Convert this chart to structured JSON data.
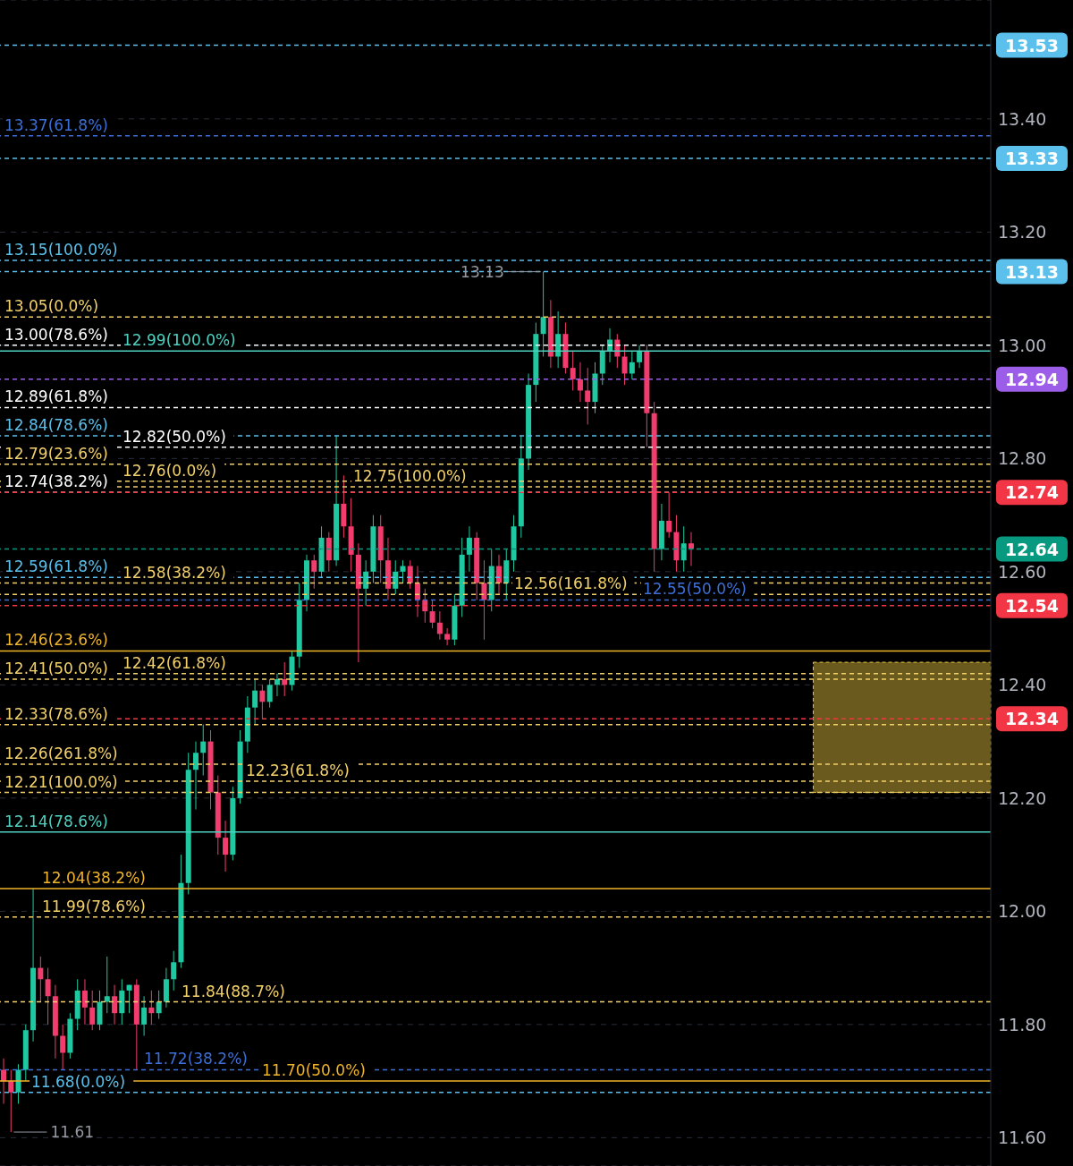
{
  "chart_data": {
    "type": "candlestick",
    "tick_labels": "y",
    "grid": "y",
    "ylim": [
      11.55,
      13.61
    ],
    "yticks": [
      {
        "value": 11.6,
        "label": "11.60"
      },
      {
        "value": 11.8,
        "label": "11.80"
      },
      {
        "value": 12.0,
        "label": "12.00"
      },
      {
        "value": 12.2,
        "label": "12.20"
      },
      {
        "value": 12.4,
        "label": "12.40"
      },
      {
        "value": 12.6,
        "label": "12.60"
      },
      {
        "value": 12.8,
        "label": "12.80"
      },
      {
        "value": 13.0,
        "label": "13.00"
      },
      {
        "value": 13.2,
        "label": "13.20"
      },
      {
        "value": 13.4,
        "label": "13.40"
      }
    ],
    "categories": [
      null,
      null,
      null,
      null,
      null,
      null,
      null,
      null,
      null,
      null,
      null,
      null,
      null,
      null,
      null,
      null,
      null,
      null,
      null,
      null,
      null,
      null,
      null,
      null,
      null,
      null,
      null,
      null,
      null,
      null,
      null,
      null,
      null,
      null,
      null,
      null,
      null,
      null,
      null,
      null,
      null,
      null,
      null,
      null,
      null,
      null,
      null,
      null,
      null,
      null,
      null,
      null,
      null,
      null,
      null,
      null,
      null,
      null,
      null,
      null,
      null,
      null,
      null,
      null,
      null,
      null,
      null,
      null,
      null,
      null,
      null,
      null,
      null,
      null,
      null,
      null,
      null,
      null,
      null,
      null,
      null,
      null,
      null,
      null,
      null,
      null,
      null,
      null,
      null,
      null,
      null,
      null,
      null,
      null,
      null,
      null,
      null,
      null,
      null,
      null,
      null,
      null,
      null,
      null,
      null,
      null,
      null,
      null,
      null,
      null,
      null,
      null,
      null,
      null,
      null,
      null,
      null,
      null,
      null,
      null,
      null,
      null,
      null,
      null,
      null,
      null,
      null,
      null,
      null,
      null,
      null,
      null,
      null,
      null
    ],
    "ohlc": [
      [
        11.72,
        11.74,
        11.66,
        11.7
      ],
      [
        11.7,
        11.72,
        11.61,
        11.68
      ],
      [
        11.68,
        11.73,
        11.66,
        11.72
      ],
      [
        11.72,
        11.8,
        11.7,
        11.79
      ],
      [
        11.79,
        12.04,
        11.77,
        11.9
      ],
      [
        11.9,
        11.92,
        11.84,
        11.88
      ],
      [
        11.88,
        11.9,
        11.8,
        11.85
      ],
      [
        11.85,
        11.87,
        11.74,
        11.78
      ],
      [
        11.78,
        11.8,
        11.72,
        11.75
      ],
      [
        11.75,
        11.82,
        11.74,
        11.81
      ],
      [
        11.81,
        11.88,
        11.79,
        11.86
      ],
      [
        11.86,
        11.88,
        11.8,
        11.83
      ],
      [
        11.83,
        11.86,
        11.79,
        11.8
      ],
      [
        11.8,
        11.86,
        11.79,
        11.84
      ],
      [
        11.84,
        11.92,
        11.82,
        11.85
      ],
      [
        11.85,
        11.87,
        11.8,
        11.82
      ],
      [
        11.82,
        11.88,
        11.8,
        11.86
      ],
      [
        11.86,
        11.87,
        11.82,
        11.87
      ],
      [
        11.87,
        11.88,
        11.72,
        11.8
      ],
      [
        11.8,
        11.85,
        11.78,
        11.83
      ],
      [
        11.83,
        11.86,
        11.8,
        11.82
      ],
      [
        11.82,
        11.86,
        11.81,
        11.84
      ],
      [
        11.84,
        11.9,
        11.83,
        11.88
      ],
      [
        11.88,
        11.93,
        11.86,
        11.91
      ],
      [
        11.91,
        12.1,
        11.9,
        12.05
      ],
      [
        12.05,
        12.28,
        12.03,
        12.25
      ],
      [
        12.25,
        12.3,
        12.18,
        12.28
      ],
      [
        12.28,
        12.33,
        12.24,
        12.3
      ],
      [
        12.3,
        12.32,
        12.18,
        12.21
      ],
      [
        12.21,
        12.24,
        12.1,
        12.13
      ],
      [
        12.13,
        12.16,
        12.07,
        12.1
      ],
      [
        12.1,
        12.22,
        12.09,
        12.2
      ],
      [
        12.2,
        12.32,
        12.19,
        12.3
      ],
      [
        12.3,
        12.38,
        12.28,
        12.36
      ],
      [
        12.36,
        12.41,
        12.33,
        12.39
      ],
      [
        12.39,
        12.4,
        12.34,
        12.37
      ],
      [
        12.37,
        12.41,
        12.36,
        12.4
      ],
      [
        12.4,
        12.42,
        12.38,
        12.41
      ],
      [
        12.41,
        12.44,
        12.38,
        12.4
      ],
      [
        12.4,
        12.46,
        12.39,
        12.45
      ],
      [
        12.45,
        12.58,
        12.43,
        12.55
      ],
      [
        12.55,
        12.63,
        12.53,
        12.62
      ],
      [
        12.62,
        12.63,
        12.57,
        12.6
      ],
      [
        12.6,
        12.68,
        12.59,
        12.66
      ],
      [
        12.66,
        12.67,
        12.6,
        12.62
      ],
      [
        12.62,
        12.84,
        12.61,
        12.72
      ],
      [
        12.72,
        12.77,
        12.66,
        12.68
      ],
      [
        12.68,
        12.73,
        12.6,
        12.63
      ],
      [
        12.63,
        12.65,
        12.44,
        12.57
      ],
      [
        12.57,
        12.62,
        12.54,
        12.6
      ],
      [
        12.6,
        12.7,
        12.58,
        12.68
      ],
      [
        12.68,
        12.7,
        12.58,
        12.62
      ],
      [
        12.62,
        12.66,
        12.55,
        12.57
      ],
      [
        12.57,
        12.62,
        12.56,
        12.6
      ],
      [
        12.6,
        12.62,
        12.58,
        12.61
      ],
      [
        12.61,
        12.62,
        12.57,
        12.58
      ],
      [
        12.58,
        12.61,
        12.52,
        12.55
      ],
      [
        12.55,
        12.57,
        12.51,
        12.53
      ],
      [
        12.53,
        12.55,
        12.5,
        12.51
      ],
      [
        12.51,
        12.53,
        12.48,
        12.49
      ],
      [
        12.49,
        12.5,
        12.47,
        12.48
      ],
      [
        12.48,
        12.56,
        12.47,
        12.54
      ],
      [
        12.54,
        12.66,
        12.52,
        12.63
      ],
      [
        12.63,
        12.68,
        12.6,
        12.66
      ],
      [
        12.66,
        12.67,
        12.55,
        12.58
      ],
      [
        12.58,
        12.62,
        12.48,
        12.55
      ],
      [
        12.55,
        12.64,
        12.53,
        12.61
      ],
      [
        12.61,
        12.63,
        12.56,
        12.58
      ],
      [
        12.58,
        12.64,
        12.55,
        12.62
      ],
      [
        12.62,
        12.7,
        12.6,
        12.68
      ],
      [
        12.68,
        12.84,
        12.66,
        12.8
      ],
      [
        12.8,
        12.95,
        12.78,
        12.93
      ],
      [
        12.93,
        13.04,
        12.9,
        13.02
      ],
      [
        13.02,
        13.13,
        12.98,
        13.05
      ],
      [
        13.05,
        13.08,
        12.96,
        12.98
      ],
      [
        12.98,
        13.06,
        12.96,
        13.02
      ],
      [
        13.02,
        13.04,
        12.95,
        12.96
      ],
      [
        12.96,
        12.99,
        12.92,
        12.94
      ],
      [
        12.94,
        12.97,
        12.9,
        12.92
      ],
      [
        12.92,
        12.96,
        12.86,
        12.9
      ],
      [
        12.9,
        12.97,
        12.88,
        12.95
      ],
      [
        12.95,
        13.0,
        12.93,
        12.99
      ],
      [
        12.99,
        13.03,
        12.97,
        13.01
      ],
      [
        13.01,
        13.02,
        12.96,
        12.98
      ],
      [
        12.98,
        13.0,
        12.93,
        12.95
      ],
      [
        12.95,
        12.99,
        12.94,
        12.97
      ],
      [
        12.97,
        13.0,
        12.96,
        12.99
      ],
      [
        12.99,
        13.0,
        12.82,
        12.88
      ],
      [
        12.88,
        12.9,
        12.6,
        12.64
      ],
      [
        12.64,
        12.72,
        12.62,
        12.69
      ],
      [
        12.69,
        12.74,
        12.66,
        12.67
      ],
      [
        12.67,
        12.7,
        12.6,
        12.62
      ],
      [
        12.62,
        12.68,
        12.6,
        12.65
      ],
      [
        12.65,
        12.67,
        12.61,
        12.64
      ],
      null,
      null,
      null,
      null,
      null,
      null,
      null,
      null,
      null,
      null,
      null,
      null,
      null,
      null,
      null,
      null,
      null,
      null,
      null,
      null,
      null,
      null,
      null,
      null,
      null,
      null,
      null,
      null,
      null,
      null,
      null,
      null,
      null,
      null,
      null,
      null,
      null,
      null,
      null,
      null
    ],
    "colors": [
      "#f23c6e",
      "#f23c6e",
      "#1fc8a0",
      "#1fc8a0",
      "#1fc8a0",
      "#f23c6e",
      "#f23c6e",
      "#f23c6e",
      "#f23c6e",
      "#1fc8a0",
      "#1fc8a0",
      "#f23c6e",
      "#f23c6e",
      "#1fc8a0",
      "#1fc8a0",
      "#f23c6e",
      "#1fc8a0",
      "#1fc8a0",
      "#f23c6e",
      "#1fc8a0",
      "#f23c6e",
      "#1fc8a0",
      "#1fc8a0",
      "#1fc8a0",
      "#1fc8a0",
      "#1fc8a0",
      "#1fc8a0",
      "#1fc8a0",
      "#f23c6e",
      "#f23c6e",
      "#f23c6e",
      "#1fc8a0",
      "#1fc8a0",
      "#1fc8a0",
      "#1fc8a0",
      "#f23c6e",
      "#1fc8a0",
      "#1fc8a0",
      "#f23c6e",
      "#1fc8a0",
      "#1fc8a0",
      "#1fc8a0",
      "#f23c6e",
      "#1fc8a0",
      "#f23c6e",
      "#1fc8a0",
      "#f23c6e",
      "#f23c6e",
      "#f23c6e",
      "#1fc8a0",
      "#1fc8a0",
      "#f23c6e",
      "#f23c6e",
      "#1fc8a0",
      "#1fc8a0",
      "#f23c6e",
      "#f23c6e",
      "#f23c6e",
      "#f23c6e",
      "#f23c6e",
      "#f23c6e",
      "#1fc8a0",
      "#1fc8a0",
      "#1fc8a0",
      "#f23c6e",
      "#f23c6e",
      "#1fc8a0",
      "#f23c6e",
      "#1fc8a0",
      "#1fc8a0",
      "#1fc8a0",
      "#1fc8a0",
      "#1fc8a0",
      "#1fc8a0",
      "#f23c6e",
      "#1fc8a0",
      "#f23c6e",
      "#f23c6e",
      "#f23c6e",
      "#f23c6e",
      "#1fc8a0",
      "#1fc8a0",
      "#1fc8a0",
      "#f23c6e",
      "#f23c6e",
      "#1fc8a0",
      "#1fc8a0",
      "#f23c6e",
      "#f23c6e",
      "#1fc8a0",
      "#f23c6e",
      "#f23c6e",
      "#1fc8a0",
      "#f23c6e",
      null,
      null,
      null,
      null,
      null,
      null,
      null,
      null,
      null,
      null,
      null,
      null,
      null,
      null,
      null,
      null,
      null,
      null,
      null,
      null,
      null,
      null,
      null,
      null,
      null,
      null,
      null,
      null,
      null,
      null,
      null,
      null,
      null,
      null,
      null,
      null,
      null,
      null,
      null,
      null
    ],
    "ref_lines": [
      {
        "axis": "y",
        "value": 13.53,
        "label": "13.53",
        "color": "#5bc0eb",
        "line_style": "dashed"
      },
      {
        "axis": "y",
        "value": 13.37,
        "label": "13.37(61.8%)",
        "color": "#3d6fd6",
        "line_style": "dashed"
      },
      {
        "axis": "y",
        "value": 13.33,
        "label": "13.33",
        "color": "#5bc0eb",
        "line_style": "dashed"
      },
      {
        "axis": "y",
        "value": 13.15,
        "label": "13.15(100.0%)",
        "color": "#5bc0eb",
        "line_style": "dashed"
      },
      {
        "axis": "y",
        "value": 13.13,
        "label": "13.13",
        "color": "#5bc0eb",
        "line_style": "dashed"
      },
      {
        "axis": "y",
        "value": 13.05,
        "label": "13.05(0.0%)",
        "color": "#f2d16b",
        "line_style": "dashed"
      },
      {
        "axis": "y",
        "value": 13.0,
        "label": "13.00(78.6%)",
        "color": "#ffffff",
        "line_style": "dashed"
      },
      {
        "axis": "y",
        "value": 12.99,
        "label": "12.99(100.0%)",
        "color": "#4fd1c0",
        "line_style": "solid"
      },
      {
        "axis": "y",
        "value": 12.94,
        "label": "12.94",
        "color": "#9c5de8",
        "line_style": "dashed"
      },
      {
        "axis": "y",
        "value": 12.89,
        "label": "12.89(61.8%)",
        "color": "#ffffff",
        "line_style": "dashed"
      },
      {
        "axis": "y",
        "value": 12.84,
        "label": "12.84(78.6%)",
        "color": "#5bc0eb",
        "line_style": "dashed"
      },
      {
        "axis": "y",
        "value": 12.82,
        "label": "12.82(50.0%)",
        "color": "#ffffff",
        "line_style": "dashed"
      },
      {
        "axis": "y",
        "value": 12.79,
        "label": "12.79(23.6%)",
        "color": "#f2d16b",
        "line_style": "dashed"
      },
      {
        "axis": "y",
        "value": 12.76,
        "label": "12.76(0.0%)",
        "color": "#f2d16b",
        "line_style": "dashed"
      },
      {
        "axis": "y",
        "value": 12.75,
        "label": "12.75(100.0%)",
        "color": "#f2d16b",
        "line_style": "dashed"
      },
      {
        "axis": "y",
        "value": 12.74,
        "label": "12.74(38.2%)",
        "color": "#ffffff",
        "line_style": "dashed"
      },
      {
        "axis": "y",
        "value": 12.74,
        "label": "12.74",
        "color": "#f23645",
        "line_style": "dashed"
      },
      {
        "axis": "y",
        "value": 12.64,
        "label": "12.64",
        "color": "#089981",
        "line_style": "dashed"
      },
      {
        "axis": "y",
        "value": 12.59,
        "label": "12.59(61.8%)",
        "color": "#5bc0eb",
        "line_style": "dashed"
      },
      {
        "axis": "y",
        "value": 12.58,
        "label": "12.58(38.2%)",
        "color": "#f2d16b",
        "line_style": "dashed"
      },
      {
        "axis": "y",
        "value": 12.56,
        "label": "12.56(161.8%)",
        "color": "#f2d16b",
        "line_style": "dashed"
      },
      {
        "axis": "y",
        "value": 12.55,
        "label": "12.55(50.0%)",
        "color": "#3d6fd6",
        "line_style": "dashed"
      },
      {
        "axis": "y",
        "value": 12.54,
        "label": "12.54",
        "color": "#f23645",
        "line_style": "dashed"
      },
      {
        "axis": "y",
        "value": 12.46,
        "label": "12.46(23.6%)",
        "color": "#f0b429",
        "line_style": "solid"
      },
      {
        "axis": "y",
        "value": 12.42,
        "label": "12.42(61.8%)",
        "color": "#f2d16b",
        "line_style": "dashed"
      },
      {
        "axis": "y",
        "value": 12.41,
        "label": "12.41(50.0%)",
        "color": "#f2d16b",
        "line_style": "dashed"
      },
      {
        "axis": "y",
        "value": 12.34,
        "label": "12.34",
        "color": "#f23645",
        "line_style": "dashed"
      },
      {
        "axis": "y",
        "value": 12.33,
        "label": "12.33(78.6%)",
        "color": "#f2d16b",
        "line_style": "dashed"
      },
      {
        "axis": "y",
        "value": 12.26,
        "label": "12.26(261.8%)",
        "color": "#f2d16b",
        "line_style": "dashed"
      },
      {
        "axis": "y",
        "value": 12.23,
        "label": "12.23(61.8%)",
        "color": "#f2d16b",
        "line_style": "dashed"
      },
      {
        "axis": "y",
        "value": 12.21,
        "label": "12.21(100.0%)",
        "color": "#f2d16b",
        "line_style": "dashed"
      },
      {
        "axis": "y",
        "value": 12.14,
        "label": "12.14(78.6%)",
        "color": "#4fd1c0",
        "line_style": "solid"
      },
      {
        "axis": "y",
        "value": 12.04,
        "label": "12.04(38.2%)",
        "color": "#f0b429",
        "line_style": "solid"
      },
      {
        "axis": "y",
        "value": 11.99,
        "label": "11.99(78.6%)",
        "color": "#f2d16b",
        "line_style": "dashed"
      },
      {
        "axis": "y",
        "value": 11.84,
        "label": "11.84(88.7%)",
        "color": "#f2d16b",
        "line_style": "dashed"
      },
      {
        "axis": "y",
        "value": 11.72,
        "label": "11.72(38.2%)",
        "color": "#3d6fd6",
        "line_style": "dashed"
      },
      {
        "axis": "y",
        "value": 11.7,
        "label": "11.70(50.0%)",
        "color": "#f0b429",
        "line_style": "solid"
      },
      {
        "axis": "y",
        "value": 11.68,
        "label": "11.68(0.0%)",
        "color": "#5bc0eb",
        "line_style": "dashed"
      }
    ],
    "bands": [
      {
        "axis": "y",
        "from": 12.21,
        "to": 12.44,
        "color": "#6b5a1e"
      }
    ],
    "annotations": [
      "13.13",
      "11.61"
    ]
  }
}
